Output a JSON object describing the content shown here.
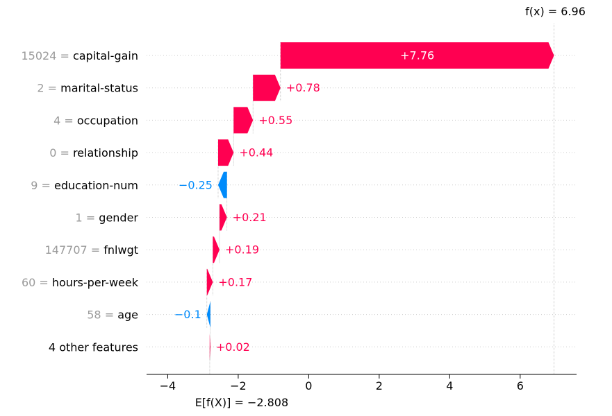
{
  "chart_data": {
    "type": "waterfall",
    "base_value": -2.808,
    "output_value": 6.96,
    "base_label": "E[f(X)] = −2.808",
    "output_label": "f(x) = 6.96",
    "xlim": [
      -4.6,
      7.6
    ],
    "xticks": [
      -4,
      -2,
      0,
      2,
      4,
      6
    ],
    "xtick_labels": [
      "−4",
      "−2",
      "0",
      "2",
      "4",
      "6"
    ],
    "grid": "dotted-horizontal",
    "positive_color": "#ff0051",
    "negative_color": "#008bfb",
    "features": [
      {
        "value_text": "15024",
        "name": "capital-gain",
        "contribution": 7.76,
        "label": "+7.76"
      },
      {
        "value_text": "2",
        "name": "marital-status",
        "contribution": 0.78,
        "label": "+0.78"
      },
      {
        "value_text": "4",
        "name": "occupation",
        "contribution": 0.55,
        "label": "+0.55"
      },
      {
        "value_text": "0",
        "name": "relationship",
        "contribution": 0.44,
        "label": "+0.44"
      },
      {
        "value_text": "9",
        "name": "education-num",
        "contribution": -0.25,
        "label": "−0.25"
      },
      {
        "value_text": "1",
        "name": "gender",
        "contribution": 0.21,
        "label": "+0.21"
      },
      {
        "value_text": "147707",
        "name": "fnlwgt",
        "contribution": 0.19,
        "label": "+0.19"
      },
      {
        "value_text": "60",
        "name": "hours-per-week",
        "contribution": 0.17,
        "label": "+0.17"
      },
      {
        "value_text": "58",
        "name": "age",
        "contribution": -0.1,
        "label": "−0.1"
      },
      {
        "value_text": "",
        "name": "4 other features",
        "contribution": 0.02,
        "label": "+0.02"
      }
    ]
  }
}
